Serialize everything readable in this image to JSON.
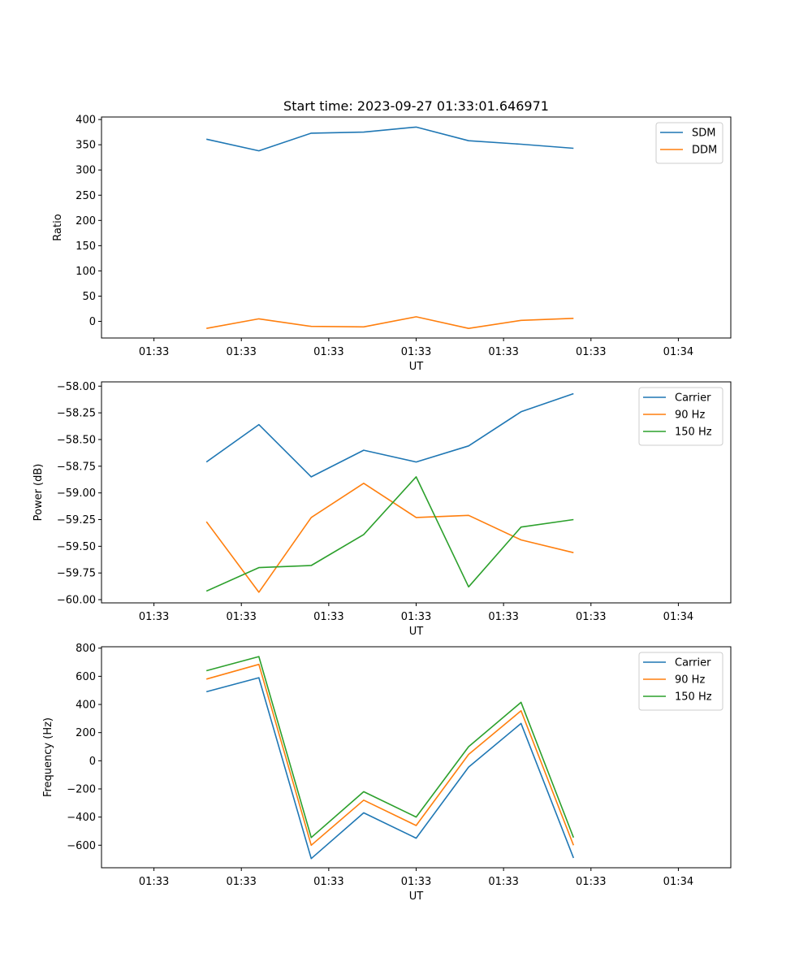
{
  "title": "Start time: 2023-09-27 01:33:01.646971",
  "chart_data": [
    {
      "type": "line",
      "xlabel": "UT",
      "ylabel": "Ratio",
      "xticks": [
        "01:33",
        "01:33",
        "01:33",
        "01:33",
        "01:33",
        "01:33",
        "01:34"
      ],
      "x": [
        0.5,
        1.0,
        1.5,
        2.0,
        2.5,
        3.0,
        3.5,
        4.0
      ],
      "xlim": [
        -0.5,
        5.5
      ],
      "ylim": [
        -33,
        405
      ],
      "yticks": [
        0,
        50,
        100,
        150,
        200,
        250,
        300,
        350,
        400
      ],
      "legend_position": "top-right",
      "series": [
        {
          "name": "SDM",
          "color": "#1f77b4",
          "values": [
            361,
            338,
            373,
            375,
            385,
            358,
            351,
            343
          ]
        },
        {
          "name": "DDM",
          "color": "#ff7f0e",
          "values": [
            -14,
            5,
            -10,
            -11,
            9,
            -14,
            2,
            6
          ]
        }
      ]
    },
    {
      "type": "line",
      "xlabel": "UT",
      "ylabel": "Power (dB)",
      "xticks": [
        "01:33",
        "01:33",
        "01:33",
        "01:33",
        "01:33",
        "01:33",
        "01:34"
      ],
      "x": [
        0.5,
        1.0,
        1.5,
        2.0,
        2.5,
        3.0,
        3.5,
        4.0
      ],
      "xlim": [
        -0.5,
        5.5
      ],
      "ylim": [
        -60.03,
        -57.96
      ],
      "yticks": [
        -60.0,
        -59.75,
        -59.5,
        -59.25,
        -59.0,
        -58.75,
        -58.5,
        -58.25,
        -58.0
      ],
      "ytick_labels": [
        "−60.00",
        "−59.75",
        "−59.50",
        "−59.25",
        "−59.00",
        "−58.75",
        "−58.50",
        "−58.25",
        "−58.00"
      ],
      "legend_position": "top-right",
      "series": [
        {
          "name": "Carrier",
          "color": "#1f77b4",
          "values": [
            -58.71,
            -58.36,
            -58.85,
            -58.6,
            -58.71,
            -58.56,
            -58.24,
            -58.07
          ]
        },
        {
          "name": "90 Hz",
          "color": "#ff7f0e",
          "values": [
            -59.27,
            -59.93,
            -59.23,
            -58.91,
            -59.23,
            -59.21,
            -59.44,
            -59.56
          ]
        },
        {
          "name": "150 Hz",
          "color": "#2ca02c",
          "values": [
            -59.92,
            -59.7,
            -59.68,
            -59.39,
            -58.85,
            -59.88,
            -59.32,
            -59.25
          ]
        }
      ]
    },
    {
      "type": "line",
      "xlabel": "UT",
      "ylabel": "Frequency (Hz)",
      "xticks": [
        "01:33",
        "01:33",
        "01:33",
        "01:33",
        "01:33",
        "01:33",
        "01:34"
      ],
      "x": [
        0.5,
        1.0,
        1.5,
        2.0,
        2.5,
        3.0,
        3.5,
        4.0
      ],
      "xlim": [
        -0.5,
        5.5
      ],
      "ylim": [
        -760,
        810
      ],
      "yticks": [
        -600,
        -400,
        -200,
        0,
        200,
        400,
        600,
        800
      ],
      "ytick_labels": [
        "−600",
        "−400",
        "−200",
        "0",
        "200",
        "400",
        "600",
        "800"
      ],
      "legend_position": "top-right",
      "series": [
        {
          "name": "Carrier",
          "color": "#1f77b4",
          "values": [
            490,
            590,
            -695,
            -370,
            -550,
            -45,
            265,
            -690
          ]
        },
        {
          "name": "90 Hz",
          "color": "#ff7f0e",
          "values": [
            580,
            685,
            -600,
            -280,
            -460,
            45,
            355,
            -600
          ]
        },
        {
          "name": "150 Hz",
          "color": "#2ca02c",
          "values": [
            640,
            740,
            -545,
            -220,
            -400,
            100,
            415,
            -545
          ]
        }
      ]
    }
  ]
}
